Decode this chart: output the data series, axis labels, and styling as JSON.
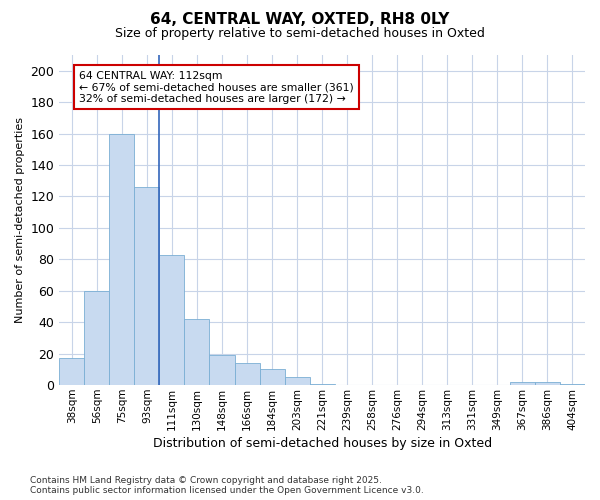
{
  "title": "64, CENTRAL WAY, OXTED, RH8 0LY",
  "subtitle": "Size of property relative to semi-detached houses in Oxted",
  "xlabel": "Distribution of semi-detached houses by size in Oxted",
  "ylabel": "Number of semi-detached properties",
  "categories": [
    "38sqm",
    "56sqm",
    "75sqm",
    "93sqm",
    "111sqm",
    "130sqm",
    "148sqm",
    "166sqm",
    "184sqm",
    "203sqm",
    "221sqm",
    "239sqm",
    "258sqm",
    "276sqm",
    "294sqm",
    "313sqm",
    "331sqm",
    "349sqm",
    "367sqm",
    "386sqm",
    "404sqm"
  ],
  "values": [
    17,
    60,
    160,
    126,
    83,
    42,
    19,
    14,
    10,
    5,
    1,
    0,
    0,
    0,
    0,
    0,
    0,
    0,
    2,
    2,
    1
  ],
  "bar_color": "#c8daf0",
  "bar_edge_color": "#7aaed4",
  "property_line_index": 4,
  "ylim": [
    0,
    210
  ],
  "yticks": [
    0,
    20,
    40,
    60,
    80,
    100,
    120,
    140,
    160,
    180,
    200
  ],
  "annotation_title": "64 CENTRAL WAY: 112sqm",
  "annotation_line1": "← 67% of semi-detached houses are smaller (361)",
  "annotation_line2": "32% of semi-detached houses are larger (172) →",
  "annotation_box_color": "#ffffff",
  "annotation_box_edge_color": "#cc0000",
  "footer_line1": "Contains HM Land Registry data © Crown copyright and database right 2025.",
  "footer_line2": "Contains public sector information licensed under the Open Government Licence v3.0.",
  "background_color": "#ffffff",
  "grid_color": "#c8d4e8"
}
